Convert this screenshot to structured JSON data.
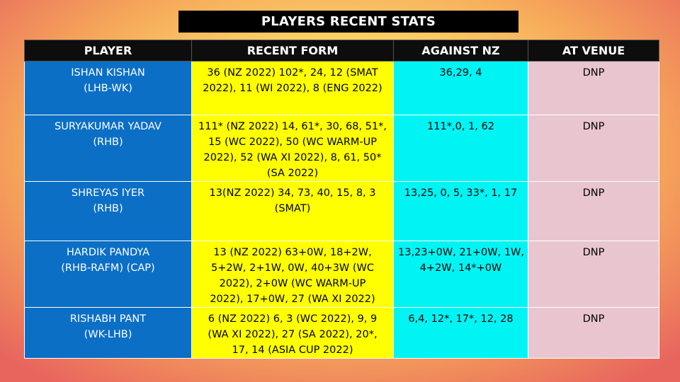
{
  "title": "PLAYERS RECENT STATS",
  "colors": {
    "header_bg": "#0d0d0d",
    "player_col": "#0b6fc6",
    "form_col": "#ffff00",
    "nz_col": "#00f4f4",
    "venue_col": "#e9c6cf"
  },
  "headers": [
    "PLAYER",
    "RECENT FORM",
    "AGAINST NZ",
    "AT VENUE"
  ],
  "rows": [
    {
      "player": [
        "ISHAN KISHAN",
        "(LHB-WK)"
      ],
      "form": [
        "36 (NZ 2022) 102*, 24, 12 (SMAT",
        "2022), 11 (WI 2022), 8 (ENG 2022)"
      ],
      "nz": [
        "36,29, 4"
      ],
      "venue": "DNP"
    },
    {
      "player": [
        "SURYAKUMAR YADAV",
        "(RHB)"
      ],
      "form": [
        "111* (NZ 2022) 14, 61*, 30, 68, 51*,",
        "15 (WC 2022), 50 (WC WARM-UP",
        "2022), 52 (WA XI 2022), 8, 61, 50*",
        "(SA 2022)"
      ],
      "nz": [
        "111*,0, 1, 62"
      ],
      "venue": "DNP"
    },
    {
      "player": [
        "SHREYAS IYER",
        "(RHB)"
      ],
      "form": [
        "13(NZ 2022) 34, 73, 40, 15, 8, 3",
        "(SMAT)"
      ],
      "nz": [
        "13,25, 0, 5, 33*, 1, 17"
      ],
      "venue": "DNP"
    },
    {
      "player": [
        "HARDIK PANDYA",
        "(RHB-RAFM) (CAP)"
      ],
      "form": [
        "13 (NZ 2022) 63+0W, 18+2W,",
        "5+2W, 2+1W, 0W, 40+3W (WC",
        "2022), 2+0W (WC WARM-UP",
        "2022), 17+0W, 27 (WA XI 2022)"
      ],
      "nz": [
        "13,23+0W, 21+0W, 1W,",
        "4+2W, 14*+0W"
      ],
      "venue": "DNP"
    },
    {
      "player": [
        "RISHABH PANT",
        "(WK-LHB)"
      ],
      "form": [
        "6 (NZ 2022) 6, 3 (WC 2022), 9, 9",
        "(WA XI 2022), 27 (SA 2022), 20*,",
        "17, 14 (ASIA CUP 2022)"
      ],
      "nz": [
        "6,4, 12*, 17*, 12, 28"
      ],
      "venue": "DNP"
    }
  ]
}
